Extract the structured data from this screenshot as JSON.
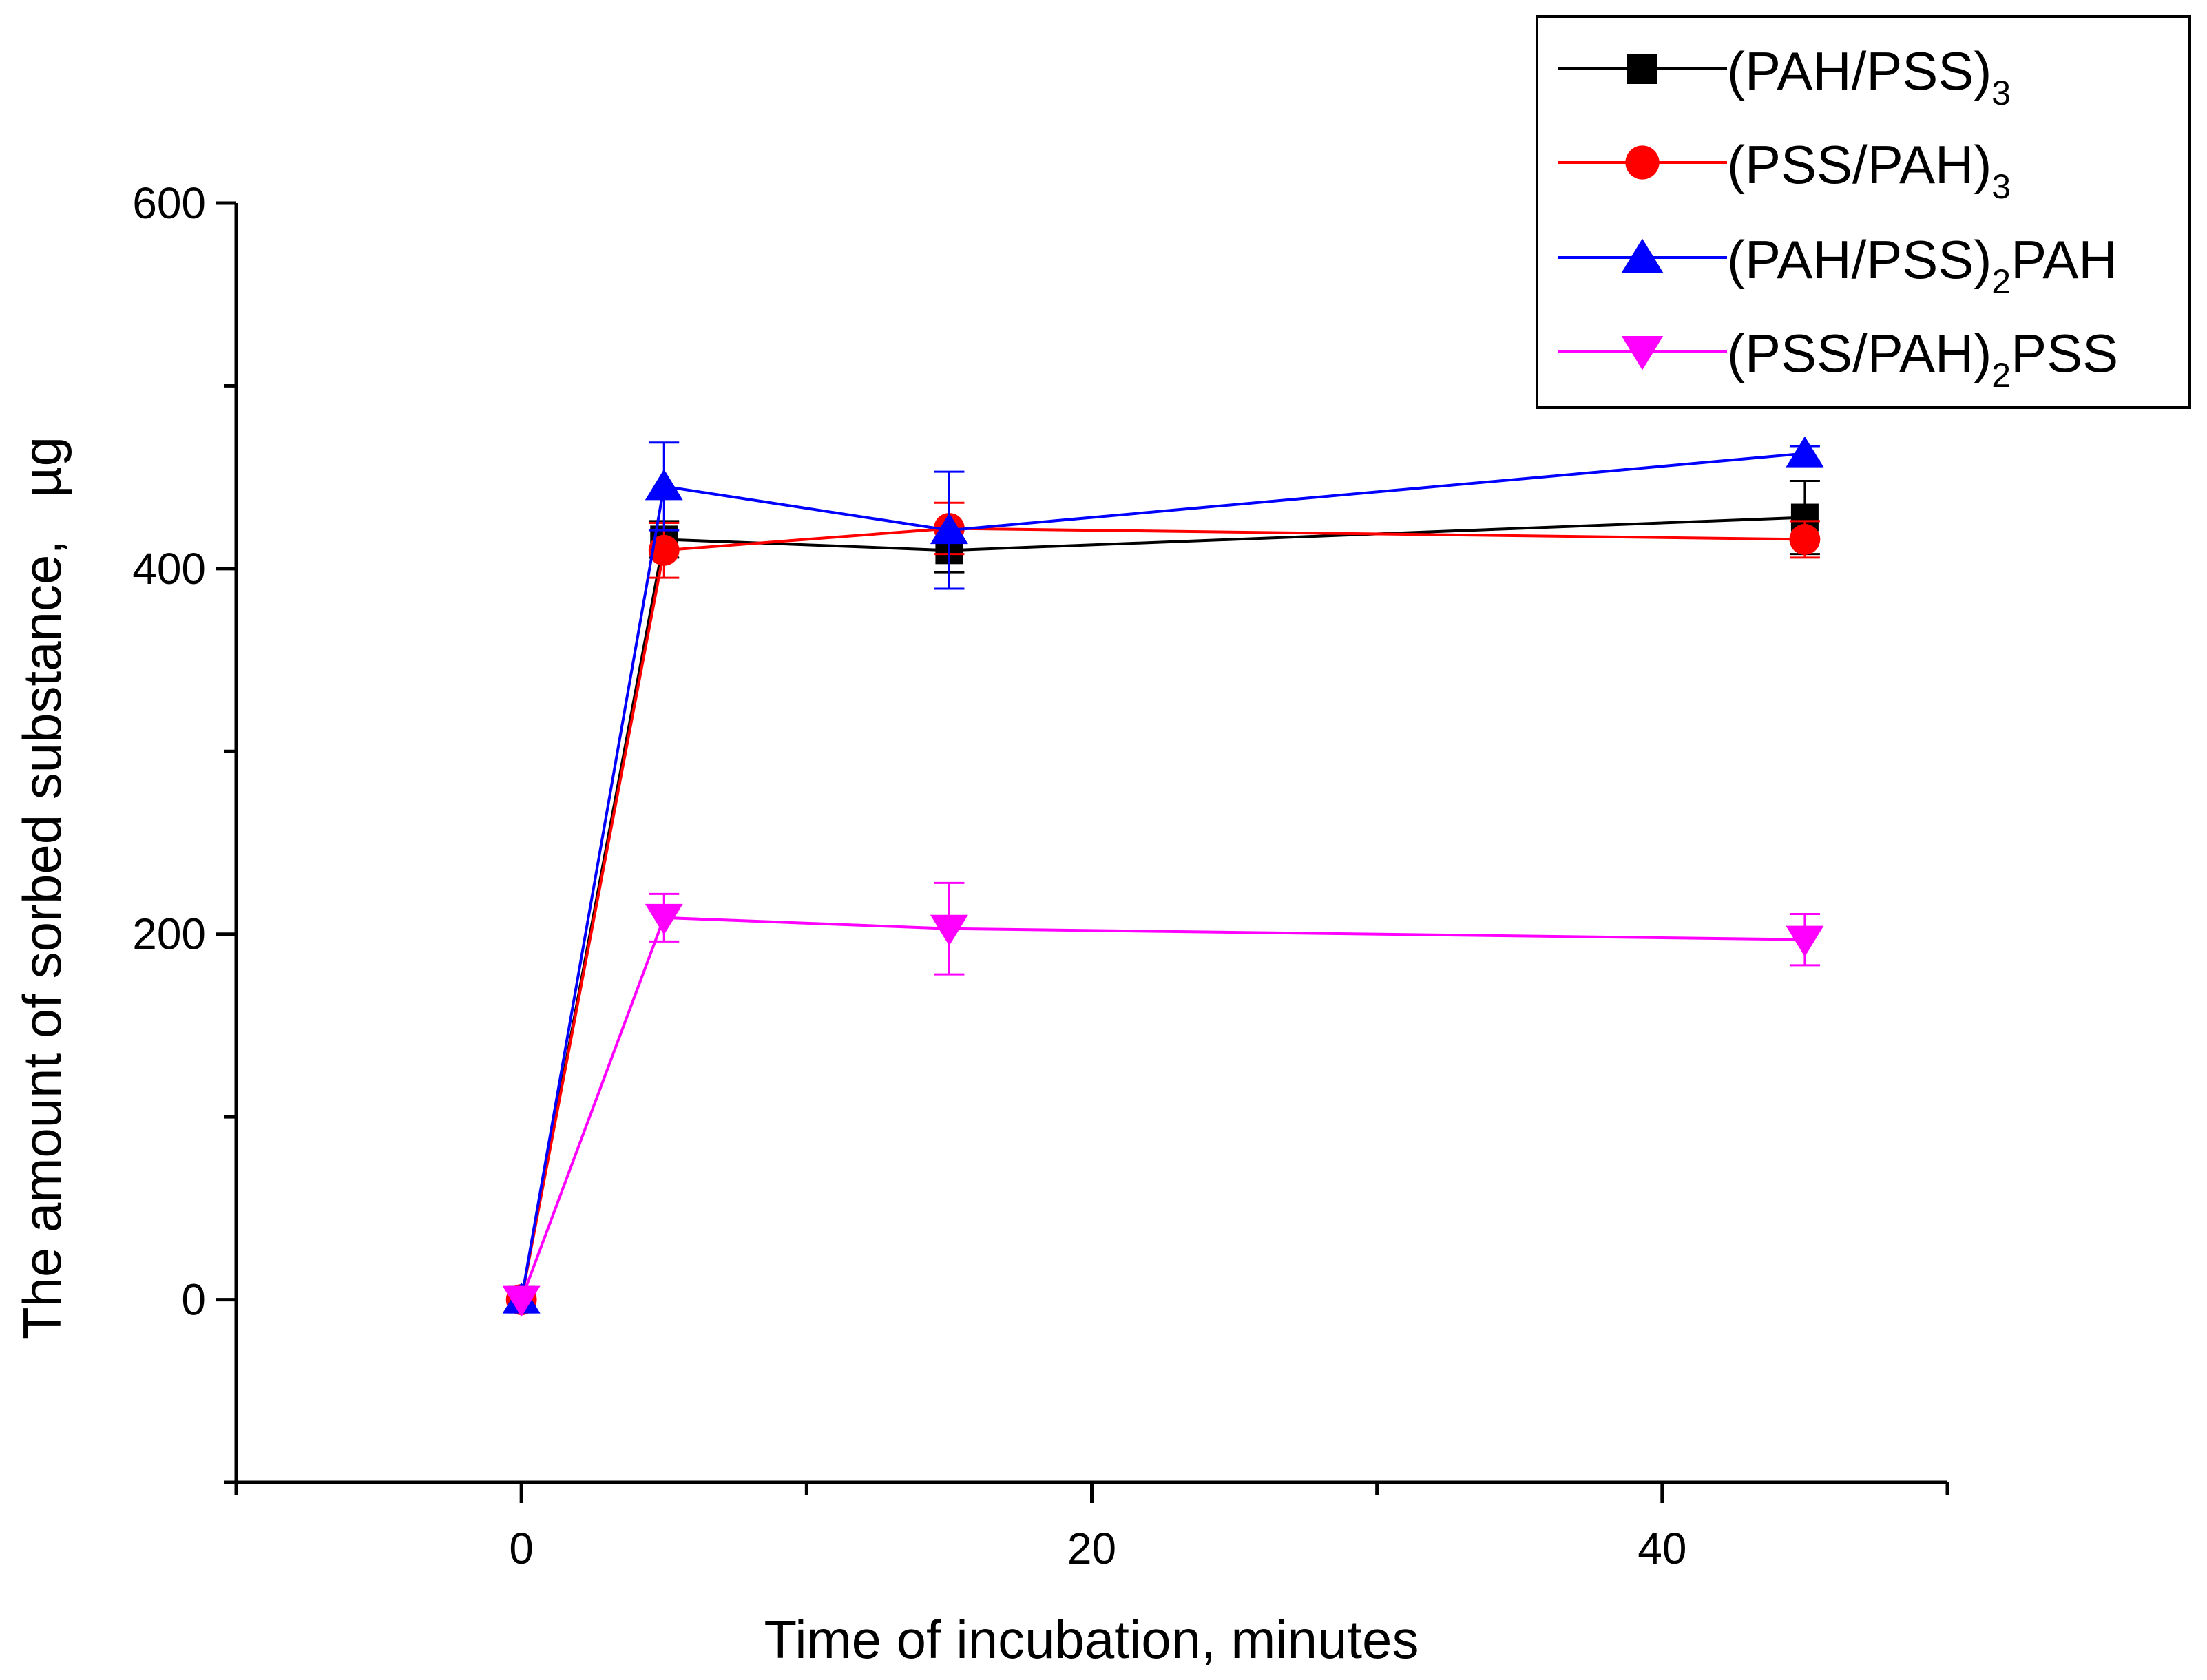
{
  "chart_data": {
    "type": "line",
    "title": "",
    "xlabel": "Time of incubation, minutes",
    "ylabel": "The amount of sorbed substance,",
    "ylabel_unit": "µg",
    "xlim": [
      -10,
      50
    ],
    "ylim": [
      -100,
      600
    ],
    "x_ticks": [
      0,
      20,
      40
    ],
    "x_minor_ticks": [
      -10,
      10,
      30,
      50
    ],
    "y_ticks": [
      0,
      200,
      400,
      600
    ],
    "y_minor_ticks": [
      -100,
      100,
      300,
      500
    ],
    "x": [
      0,
      5,
      15,
      45
    ],
    "legend_position": "top-right",
    "series": [
      {
        "name": "(PAH/PSS)3",
        "label_main": "(PAH/PSS)",
        "label_sub": "3",
        "label_tail": "",
        "color": "#000000",
        "marker": "square",
        "values": [
          0,
          416,
          410,
          428
        ],
        "errors": [
          0,
          10,
          12,
          20
        ]
      },
      {
        "name": "(PSS/PAH)3",
        "label_main": "(PSS/PAH)",
        "label_sub": "3",
        "label_tail": "",
        "color": "#ff0000",
        "marker": "circle",
        "values": [
          0,
          410,
          422,
          416
        ],
        "errors": [
          0,
          15,
          14,
          10
        ]
      },
      {
        "name": "(PAH/PSS)2PAH",
        "label_main": "(PAH/PSS)",
        "label_sub": "2",
        "label_tail": "PAH",
        "color": "#0000ff",
        "marker": "triangle-up",
        "values": [
          0,
          445,
          421,
          463
        ],
        "errors": [
          0,
          24,
          32,
          4
        ]
      },
      {
        "name": "(PSS/PAH)2PSS",
        "label_main": "(PSS/PAH)",
        "label_sub": "2",
        "label_tail": "PSS",
        "color": "#ff00ff",
        "marker": "triangle-down",
        "values": [
          0,
          209,
          203,
          197
        ],
        "errors": [
          0,
          13,
          25,
          14
        ]
      }
    ]
  }
}
